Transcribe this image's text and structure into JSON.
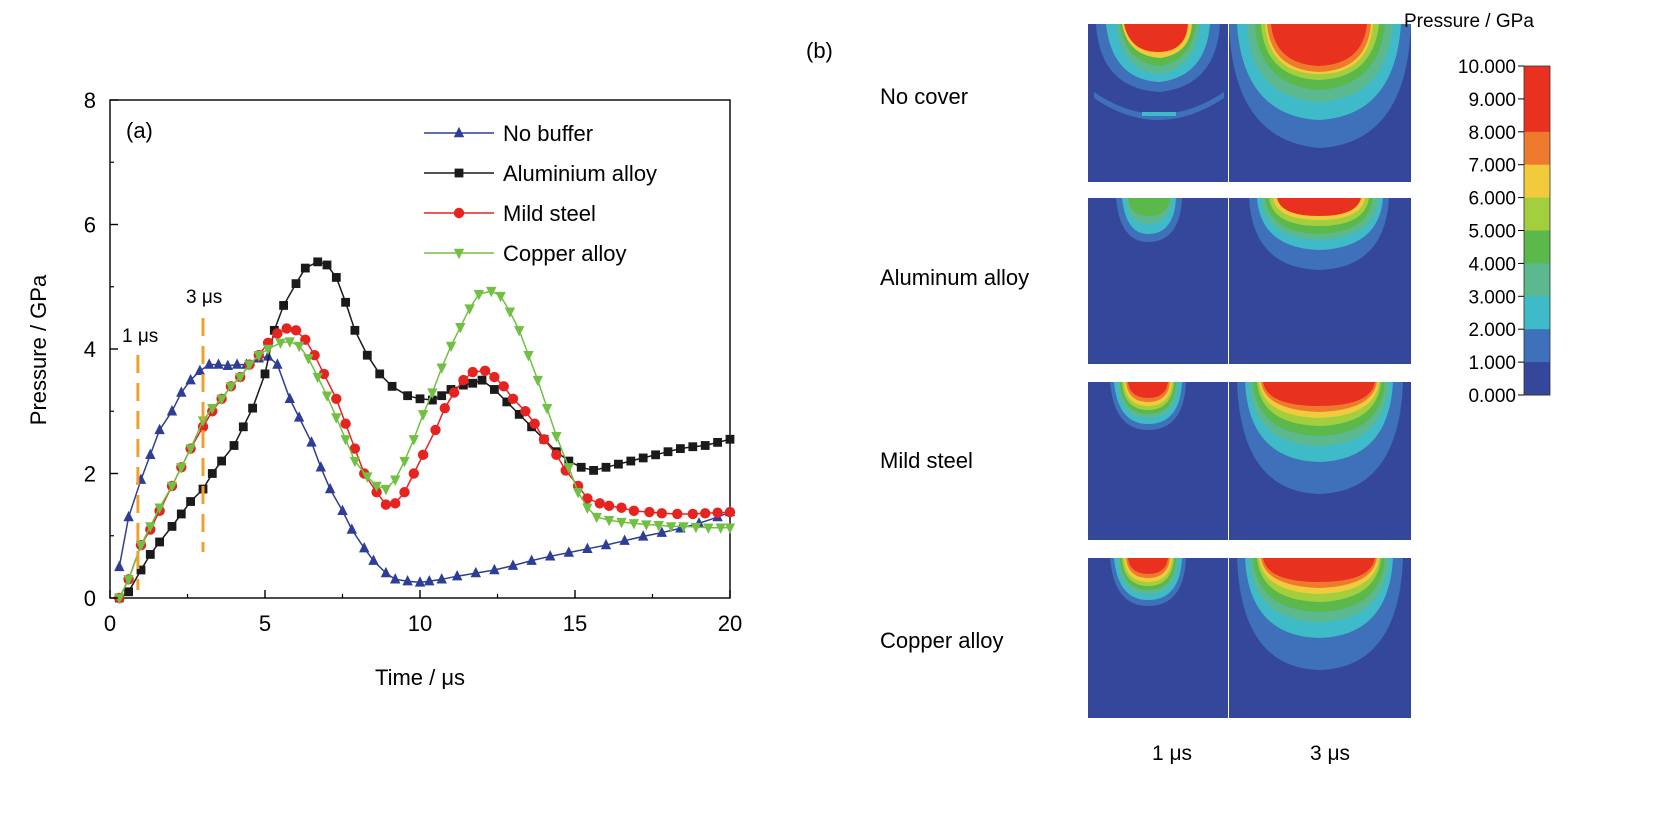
{
  "chart_data": [
    {
      "type": "line",
      "panel_label": "(a)",
      "xlabel": "Time / μs",
      "ylabel": "Pressure / GPa",
      "xlim": [
        0,
        20
      ],
      "ylim": [
        0,
        8
      ],
      "xticks": [
        "0",
        "5",
        "10",
        "15",
        "20"
      ],
      "yticks": [
        "0",
        "2",
        "4",
        "6",
        "8"
      ],
      "grid": false,
      "legend_position": "top-right",
      "annotations": [
        {
          "text": "1 μs",
          "x": 0.9
        },
        {
          "text": "3 μs",
          "x": 3.0
        }
      ],
      "series": [
        {
          "name": "No buffer",
          "color": "#2e3e96",
          "marker": "triangle-up",
          "points": [
            [
              0.3,
              0.5
            ],
            [
              0.6,
              1.3
            ],
            [
              1.0,
              1.9
            ],
            [
              1.3,
              2.3
            ],
            [
              1.6,
              2.7
            ],
            [
              2.0,
              3.0
            ],
            [
              2.3,
              3.3
            ],
            [
              2.6,
              3.5
            ],
            [
              2.9,
              3.65
            ],
            [
              3.2,
              3.75
            ],
            [
              3.5,
              3.75
            ],
            [
              3.8,
              3.73
            ],
            [
              4.1,
              3.75
            ],
            [
              4.4,
              3.75
            ],
            [
              4.8,
              3.85
            ],
            [
              5.1,
              3.88
            ],
            [
              5.4,
              3.75
            ],
            [
              5.8,
              3.2
            ],
            [
              6.1,
              2.9
            ],
            [
              6.5,
              2.5
            ],
            [
              6.8,
              2.1
            ],
            [
              7.1,
              1.75
            ],
            [
              7.5,
              1.4
            ],
            [
              7.8,
              1.1
            ],
            [
              8.2,
              0.8
            ],
            [
              8.5,
              0.6
            ],
            [
              8.9,
              0.4
            ],
            [
              9.2,
              0.3
            ],
            [
              9.6,
              0.27
            ],
            [
              10.0,
              0.25
            ],
            [
              10.3,
              0.27
            ],
            [
              10.7,
              0.3
            ],
            [
              11.2,
              0.35
            ],
            [
              11.8,
              0.4
            ],
            [
              12.4,
              0.45
            ],
            [
              13.0,
              0.52
            ],
            [
              13.6,
              0.6
            ],
            [
              14.2,
              0.67
            ],
            [
              14.8,
              0.73
            ],
            [
              15.4,
              0.79
            ],
            [
              16.0,
              0.85
            ],
            [
              16.6,
              0.92
            ],
            [
              17.2,
              0.99
            ],
            [
              17.8,
              1.05
            ],
            [
              18.4,
              1.12
            ],
            [
              19.0,
              1.2
            ],
            [
              19.6,
              1.3
            ],
            [
              20.0,
              1.38
            ]
          ]
        },
        {
          "name": "Aluminium alloy",
          "color": "#1a1a1a",
          "marker": "square",
          "points": [
            [
              0.3,
              0.0
            ],
            [
              0.6,
              0.1
            ],
            [
              1.0,
              0.45
            ],
            [
              1.3,
              0.7
            ],
            [
              1.6,
              0.9
            ],
            [
              2.0,
              1.15
            ],
            [
              2.3,
              1.35
            ],
            [
              2.6,
              1.55
            ],
            [
              3.0,
              1.75
            ],
            [
              3.3,
              2.0
            ],
            [
              3.6,
              2.2
            ],
            [
              4.0,
              2.45
            ],
            [
              4.3,
              2.75
            ],
            [
              4.6,
              3.05
            ],
            [
              5.0,
              3.6
            ],
            [
              5.3,
              4.3
            ],
            [
              5.6,
              4.7
            ],
            [
              6.0,
              5.05
            ],
            [
              6.3,
              5.3
            ],
            [
              6.7,
              5.4
            ],
            [
              7.0,
              5.35
            ],
            [
              7.3,
              5.15
            ],
            [
              7.6,
              4.75
            ],
            [
              7.9,
              4.3
            ],
            [
              8.3,
              3.9
            ],
            [
              8.7,
              3.6
            ],
            [
              9.1,
              3.4
            ],
            [
              9.6,
              3.25
            ],
            [
              10.0,
              3.2
            ],
            [
              10.4,
              3.18
            ],
            [
              10.7,
              3.25
            ],
            [
              11.0,
              3.35
            ],
            [
              11.4,
              3.42
            ],
            [
              11.7,
              3.45
            ],
            [
              12.0,
              3.5
            ],
            [
              12.4,
              3.35
            ],
            [
              12.8,
              3.15
            ],
            [
              13.2,
              2.95
            ],
            [
              13.6,
              2.75
            ],
            [
              14.0,
              2.55
            ],
            [
              14.4,
              2.35
            ],
            [
              14.8,
              2.2
            ],
            [
              15.2,
              2.1
            ],
            [
              15.6,
              2.05
            ],
            [
              16.0,
              2.1
            ],
            [
              16.4,
              2.15
            ],
            [
              16.8,
              2.2
            ],
            [
              17.2,
              2.25
            ],
            [
              17.6,
              2.3
            ],
            [
              18.0,
              2.35
            ],
            [
              18.4,
              2.4
            ],
            [
              18.8,
              2.43
            ],
            [
              19.2,
              2.45
            ],
            [
              19.6,
              2.5
            ],
            [
              20.0,
              2.55
            ]
          ]
        },
        {
          "name": "Mild steel",
          "color": "#e52421",
          "marker": "circle",
          "points": [
            [
              0.3,
              0.0
            ],
            [
              0.6,
              0.3
            ],
            [
              1.0,
              0.85
            ],
            [
              1.3,
              1.1
            ],
            [
              1.6,
              1.4
            ],
            [
              2.0,
              1.8
            ],
            [
              2.3,
              2.1
            ],
            [
              2.6,
              2.4
            ],
            [
              3.0,
              2.75
            ],
            [
              3.3,
              3.0
            ],
            [
              3.6,
              3.2
            ],
            [
              3.9,
              3.4
            ],
            [
              4.2,
              3.55
            ],
            [
              4.5,
              3.75
            ],
            [
              4.8,
              3.9
            ],
            [
              5.1,
              4.1
            ],
            [
              5.4,
              4.25
            ],
            [
              5.7,
              4.33
            ],
            [
              6.0,
              4.3
            ],
            [
              6.3,
              4.15
            ],
            [
              6.6,
              3.9
            ],
            [
              6.9,
              3.6
            ],
            [
              7.3,
              3.2
            ],
            [
              7.6,
              2.8
            ],
            [
              7.9,
              2.4
            ],
            [
              8.2,
              2.0
            ],
            [
              8.6,
              1.7
            ],
            [
              8.9,
              1.5
            ],
            [
              9.2,
              1.52
            ],
            [
              9.5,
              1.7
            ],
            [
              9.8,
              2.0
            ],
            [
              10.1,
              2.3
            ],
            [
              10.5,
              2.7
            ],
            [
              10.8,
              3.05
            ],
            [
              11.1,
              3.3
            ],
            [
              11.4,
              3.5
            ],
            [
              11.7,
              3.63
            ],
            [
              12.1,
              3.65
            ],
            [
              12.4,
              3.55
            ],
            [
              12.7,
              3.4
            ],
            [
              13.0,
              3.2
            ],
            [
              13.4,
              3.0
            ],
            [
              13.7,
              2.8
            ],
            [
              14.0,
              2.55
            ],
            [
              14.4,
              2.3
            ],
            [
              14.7,
              2.05
            ],
            [
              15.1,
              1.8
            ],
            [
              15.4,
              1.6
            ],
            [
              15.8,
              1.52
            ],
            [
              16.1,
              1.48
            ],
            [
              16.5,
              1.45
            ],
            [
              16.9,
              1.4
            ],
            [
              17.4,
              1.38
            ],
            [
              17.8,
              1.36
            ],
            [
              18.3,
              1.35
            ],
            [
              18.8,
              1.35
            ],
            [
              19.2,
              1.36
            ],
            [
              19.6,
              1.37
            ],
            [
              20.0,
              1.38
            ]
          ]
        },
        {
          "name": "Copper alloy",
          "color": "#72c043",
          "marker": "triangle-down",
          "points": [
            [
              0.3,
              0.0
            ],
            [
              0.6,
              0.3
            ],
            [
              1.0,
              0.85
            ],
            [
              1.3,
              1.15
            ],
            [
              1.6,
              1.45
            ],
            [
              2.0,
              1.8
            ],
            [
              2.3,
              2.1
            ],
            [
              2.6,
              2.4
            ],
            [
              3.0,
              2.85
            ],
            [
              3.3,
              3.05
            ],
            [
              3.6,
              3.2
            ],
            [
              3.9,
              3.4
            ],
            [
              4.2,
              3.55
            ],
            [
              4.5,
              3.75
            ],
            [
              4.8,
              3.9
            ],
            [
              5.1,
              4.0
            ],
            [
              5.5,
              4.1
            ],
            [
              5.8,
              4.12
            ],
            [
              6.1,
              4.05
            ],
            [
              6.4,
              3.85
            ],
            [
              6.7,
              3.55
            ],
            [
              7.0,
              3.25
            ],
            [
              7.3,
              2.9
            ],
            [
              7.6,
              2.55
            ],
            [
              7.9,
              2.2
            ],
            [
              8.3,
              1.95
            ],
            [
              8.6,
              1.8
            ],
            [
              8.9,
              1.75
            ],
            [
              9.2,
              1.9
            ],
            [
              9.5,
              2.2
            ],
            [
              9.8,
              2.55
            ],
            [
              10.1,
              2.95
            ],
            [
              10.4,
              3.3
            ],
            [
              10.7,
              3.7
            ],
            [
              11.0,
              4.05
            ],
            [
              11.3,
              4.35
            ],
            [
              11.6,
              4.65
            ],
            [
              11.9,
              4.88
            ],
            [
              12.3,
              4.93
            ],
            [
              12.6,
              4.85
            ],
            [
              12.9,
              4.6
            ],
            [
              13.2,
              4.3
            ],
            [
              13.5,
              3.9
            ],
            [
              13.8,
              3.5
            ],
            [
              14.1,
              3.05
            ],
            [
              14.4,
              2.6
            ],
            [
              14.8,
              2.1
            ],
            [
              15.1,
              1.7
            ],
            [
              15.4,
              1.45
            ],
            [
              15.7,
              1.3
            ],
            [
              16.1,
              1.25
            ],
            [
              16.5,
              1.22
            ],
            [
              16.9,
              1.2
            ],
            [
              17.3,
              1.18
            ],
            [
              17.7,
              1.17
            ],
            [
              18.1,
              1.15
            ],
            [
              18.5,
              1.15
            ],
            [
              18.9,
              1.14
            ],
            [
              19.3,
              1.13
            ],
            [
              19.7,
              1.13
            ],
            [
              20.0,
              1.13
            ]
          ]
        }
      ]
    },
    {
      "type": "heatmap",
      "panel_label": "(b)",
      "row_labels": [
        "No cover",
        "Aluminum alloy",
        "Mild steel",
        "Copper alloy"
      ],
      "column_labels": [
        "1 μs",
        "3 μs"
      ],
      "colorbar_title": "Pressure / GPa",
      "colorbar_ticks": [
        "10.000",
        "9.000",
        "8.000",
        "7.000",
        "6.000",
        "5.000",
        "4.000",
        "3.000",
        "2.000",
        "1.000",
        "0.000"
      ],
      "colorbar_colors": [
        "#e8321f",
        "#ee7a2e",
        "#f1cb3c",
        "#a3cf3f",
        "#5bb84a",
        "#5cb88f",
        "#3fbac9",
        "#3e71b9",
        "#34479a"
      ],
      "background_color": "#34479a"
    }
  ]
}
